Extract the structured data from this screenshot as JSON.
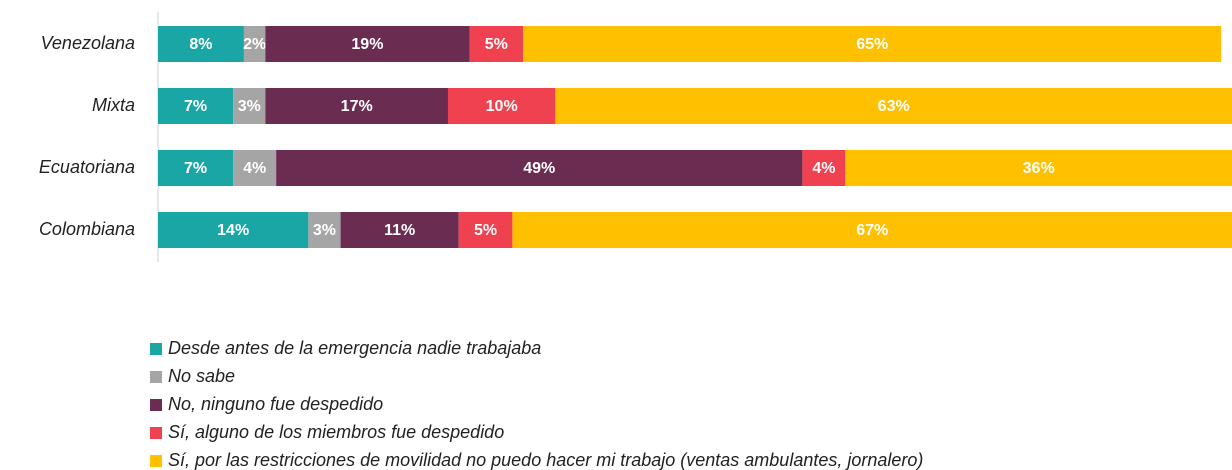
{
  "chart_data": {
    "type": "stacked_bar_horizontal",
    "categories": [
      "Venezolana",
      "Mixta",
      "Ecuatoriana",
      "Colombiana"
    ],
    "xlim": [
      0,
      100
    ],
    "series": [
      {
        "name": "Desde antes de la emergencia nadie trabajaba",
        "color": "#1ba6a6",
        "values": [
          8,
          7,
          7,
          14
        ],
        "value_labels": [
          "8%",
          "7%",
          "7%",
          "14%"
        ]
      },
      {
        "name": "No sabe",
        "color": "#a5a5a5",
        "values": [
          2,
          3,
          4,
          3
        ],
        "value_labels": [
          "2%",
          "3%",
          "4%",
          "3%"
        ]
      },
      {
        "name": "No, ninguno fue despedido",
        "color": "#6b2c52",
        "values": [
          19,
          17,
          49,
          11
        ],
        "value_labels": [
          "19%",
          "17%",
          "49%",
          "11%"
        ]
      },
      {
        "name": "Sí, alguno de los miembros fue despedido",
        "color": "#ef414f",
        "values": [
          5,
          10,
          4,
          5
        ],
        "value_labels": [
          "5%",
          "10%",
          "4%",
          "5%"
        ]
      },
      {
        "name": "Sí, por las restricciones de movilidad no puedo hacer mi trabajo (ventas ambulantes, jornalero)",
        "color": "#ffc000",
        "values": [
          65,
          63,
          36,
          67
        ],
        "value_labels": [
          "65%",
          "63%",
          "36%",
          "67%"
        ]
      }
    ]
  }
}
